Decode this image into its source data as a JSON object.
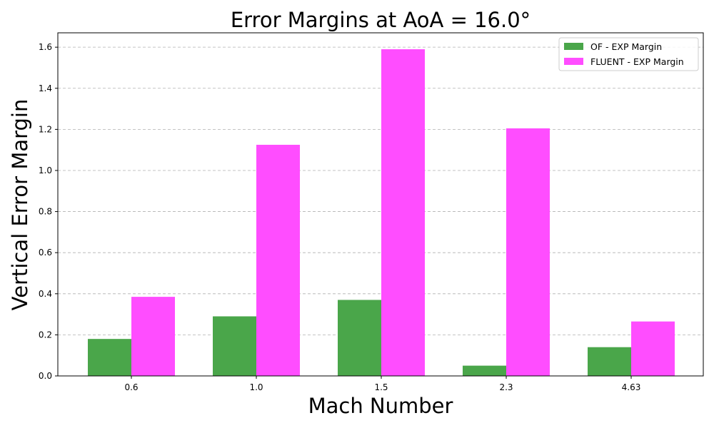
{
  "chart_data": {
    "type": "bar",
    "title": "Error Margins at AoA = 16.0°",
    "xlabel": "Mach Number",
    "ylabel": "Vertical Error Margin",
    "categories": [
      "0.6",
      "1.0",
      "1.5",
      "2.3",
      "4.63"
    ],
    "series": [
      {
        "name": "OF - EXP Margin",
        "color": "#4aa64a",
        "values": [
          0.18,
          0.29,
          0.37,
          0.05,
          0.14
        ]
      },
      {
        "name": "FLUENT - EXP Margin",
        "color": "#ff4dff",
        "values": [
          0.385,
          1.125,
          1.59,
          1.205,
          0.265
        ]
      }
    ],
    "ylim": [
      0,
      1.67
    ],
    "yticks": [
      "0.0",
      "0.2",
      "0.4",
      "0.6",
      "0.8",
      "1.0",
      "1.2",
      "1.4",
      "1.6"
    ],
    "grid": "y-dashed",
    "legend_position": "top-right"
  }
}
